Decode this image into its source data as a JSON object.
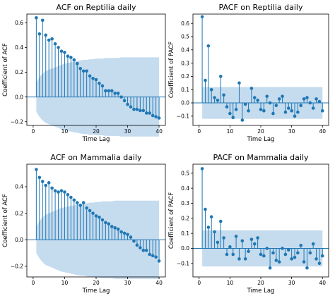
{
  "chart_data": [
    {
      "type": "stem",
      "title": "ACF on Reptilia daily",
      "xlabel": "Time Lag",
      "ylabel": "Coefficient of ACF",
      "xlim": [
        -2,
        42
      ],
      "ylim": [
        -0.23,
        0.67
      ],
      "xticks": [
        0,
        10,
        20,
        30,
        40
      ],
      "yticks": [
        -0.2,
        0.0,
        0.2,
        0.4,
        0.6
      ],
      "ytick_labels": [
        "−0.2",
        "0.0",
        "0.2",
        "0.4",
        "0.6"
      ],
      "band_upper": [
        0.12,
        0.16,
        0.19,
        0.21,
        0.22,
        0.23,
        0.24,
        0.25,
        0.26,
        0.27,
        0.275,
        0.28,
        0.285,
        0.29,
        0.295,
        0.3,
        0.3,
        0.305,
        0.305,
        0.31,
        0.31,
        0.31,
        0.315,
        0.315,
        0.315,
        0.315,
        0.315,
        0.32,
        0.32,
        0.32,
        0.32,
        0.32,
        0.32,
        0.32,
        0.32,
        0.32,
        0.32,
        0.32,
        0.32,
        0.32
      ],
      "lags": [
        1,
        2,
        3,
        4,
        5,
        6,
        7,
        8,
        9,
        10,
        11,
        12,
        13,
        14,
        15,
        16,
        17,
        18,
        19,
        20,
        21,
        22,
        23,
        24,
        25,
        26,
        27,
        28,
        29,
        30,
        31,
        32,
        33,
        34,
        35,
        36,
        37,
        38,
        39,
        40
      ],
      "values": [
        0.64,
        0.51,
        0.62,
        0.5,
        0.46,
        0.47,
        0.43,
        0.4,
        0.37,
        0.36,
        0.33,
        0.32,
        0.3,
        0.27,
        0.23,
        0.21,
        0.21,
        0.17,
        0.15,
        0.14,
        0.11,
        0.09,
        0.05,
        0.05,
        0.05,
        0.03,
        0.03,
        0.0,
        -0.03,
        -0.06,
        -0.08,
        -0.1,
        -0.1,
        -0.11,
        -0.11,
        -0.13,
        -0.13,
        -0.15,
        -0.16,
        -0.17
      ]
    },
    {
      "type": "stem",
      "title": "PACF on Reptilia daily",
      "xlabel": "Time Lag",
      "ylabel": "Coefficient of PACF",
      "xlim": [
        -2,
        42
      ],
      "ylim": [
        -0.17,
        0.67
      ],
      "xticks": [
        0,
        10,
        20,
        30,
        40
      ],
      "yticks": [
        -0.1,
        0.0,
        0.1,
        0.2,
        0.3,
        0.4,
        0.5,
        0.6
      ],
      "ytick_labels": [
        "−0.1",
        "0.0",
        "0.1",
        "0.2",
        "0.3",
        "0.4",
        "0.5",
        "0.6"
      ],
      "band_upper": [
        0.12,
        0.12,
        0.12,
        0.12,
        0.12,
        0.12,
        0.12,
        0.12,
        0.12,
        0.12,
        0.12,
        0.12,
        0.12,
        0.12,
        0.12,
        0.12,
        0.12,
        0.12,
        0.12,
        0.12,
        0.12,
        0.12,
        0.12,
        0.12,
        0.12,
        0.12,
        0.12,
        0.12,
        0.12,
        0.12,
        0.12,
        0.12,
        0.12,
        0.12,
        0.12,
        0.12,
        0.12,
        0.12,
        0.12,
        0.12
      ],
      "lags": [
        1,
        2,
        3,
        4,
        5,
        6,
        7,
        8,
        9,
        10,
        11,
        12,
        13,
        14,
        15,
        16,
        17,
        18,
        19,
        20,
        21,
        22,
        23,
        24,
        25,
        26,
        27,
        28,
        29,
        30,
        31,
        32,
        33,
        34,
        35,
        36,
        37,
        38,
        39,
        40
      ],
      "values": [
        0.65,
        0.17,
        0.43,
        0.1,
        0.04,
        0.02,
        0.2,
        0.06,
        -0.03,
        -0.08,
        -0.11,
        -0.05,
        0.15,
        -0.13,
        -0.01,
        -0.06,
        0.11,
        0.04,
        0.02,
        -0.05,
        -0.06,
        0.05,
        0.0,
        -0.08,
        -0.02,
        0.03,
        0.05,
        -0.07,
        -0.04,
        -0.06,
        -0.1,
        -0.07,
        -0.02,
        0.03,
        0.04,
        0.0,
        -0.04,
        0.03,
        0.01,
        -0.06
      ]
    },
    {
      "type": "stem",
      "title": "ACF on Mammalia daily",
      "xlabel": "Time Lag",
      "ylabel": "Coefficient of ACF",
      "xlim": [
        -2,
        42
      ],
      "ylim": [
        -0.28,
        0.57
      ],
      "xticks": [
        0,
        10,
        20,
        30,
        40
      ],
      "yticks": [
        -0.2,
        0.0,
        0.2,
        0.4
      ],
      "ytick_labels": [
        "−0.2",
        "0.0",
        "0.2",
        "0.4"
      ],
      "band_upper": [
        0.1,
        0.14,
        0.17,
        0.19,
        0.2,
        0.21,
        0.22,
        0.23,
        0.24,
        0.245,
        0.25,
        0.255,
        0.26,
        0.265,
        0.27,
        0.27,
        0.275,
        0.28,
        0.28,
        0.285,
        0.285,
        0.29,
        0.29,
        0.29,
        0.29,
        0.295,
        0.295,
        0.295,
        0.295,
        0.295,
        0.295,
        0.295,
        0.295,
        0.295,
        0.295,
        0.295,
        0.295,
        0.295,
        0.295,
        0.295
      ],
      "lags": [
        1,
        2,
        3,
        4,
        5,
        6,
        7,
        8,
        9,
        10,
        11,
        12,
        13,
        14,
        15,
        16,
        17,
        18,
        19,
        20,
        21,
        22,
        23,
        24,
        25,
        26,
        27,
        28,
        29,
        30,
        31,
        32,
        33,
        34,
        35,
        36,
        37,
        38,
        39,
        40
      ],
      "values": [
        0.53,
        0.47,
        0.44,
        0.41,
        0.43,
        0.39,
        0.37,
        0.36,
        0.37,
        0.36,
        0.34,
        0.32,
        0.3,
        0.28,
        0.26,
        0.28,
        0.24,
        0.22,
        0.2,
        0.18,
        0.17,
        0.15,
        0.13,
        0.12,
        0.1,
        0.09,
        0.08,
        0.06,
        0.05,
        0.04,
        0.02,
        -0.01,
        -0.04,
        -0.06,
        -0.08,
        -0.08,
        -0.11,
        -0.12,
        -0.13,
        -0.16
      ]
    },
    {
      "type": "stem",
      "title": "PACF on Mammalia daily",
      "xlabel": "Time Lag",
      "ylabel": "Coefficient of PACF",
      "xlim": [
        -2,
        42
      ],
      "ylim": [
        -0.19,
        0.56
      ],
      "xticks": [
        0,
        10,
        20,
        30,
        40
      ],
      "yticks": [
        -0.1,
        0.0,
        0.1,
        0.2,
        0.3,
        0.4,
        0.5
      ],
      "ytick_labels": [
        "−0.1",
        "0.0",
        "0.1",
        "0.2",
        "0.3",
        "0.4",
        "0.5"
      ],
      "band_upper": [
        0.12,
        0.12,
        0.12,
        0.12,
        0.12,
        0.12,
        0.12,
        0.12,
        0.12,
        0.12,
        0.12,
        0.12,
        0.12,
        0.12,
        0.12,
        0.12,
        0.12,
        0.12,
        0.12,
        0.12,
        0.12,
        0.12,
        0.12,
        0.12,
        0.12,
        0.12,
        0.12,
        0.12,
        0.12,
        0.12,
        0.12,
        0.12,
        0.12,
        0.12,
        0.12,
        0.12,
        0.12,
        0.12,
        0.12,
        0.12
      ],
      "lags": [
        1,
        2,
        3,
        4,
        5,
        6,
        7,
        8,
        9,
        10,
        11,
        12,
        13,
        14,
        15,
        16,
        17,
        18,
        19,
        20,
        21,
        22,
        23,
        24,
        25,
        26,
        27,
        28,
        29,
        30,
        31,
        32,
        33,
        34,
        35,
        36,
        37,
        38,
        39,
        40
      ],
      "values": [
        0.53,
        0.26,
        0.14,
        0.21,
        0.11,
        0.04,
        0.18,
        0.07,
        -0.04,
        0.01,
        -0.04,
        0.08,
        -0.07,
        0.05,
        -0.07,
        -0.02,
        0.06,
        0.03,
        0.07,
        -0.04,
        -0.05,
        0.0,
        -0.13,
        -0.03,
        -0.08,
        -0.09,
        0.0,
        -0.04,
        -0.01,
        -0.07,
        -0.06,
        -0.03,
        0.02,
        -0.09,
        -0.13,
        -0.03,
        0.03,
        -0.07,
        -0.1,
        -0.05
      ]
    }
  ]
}
